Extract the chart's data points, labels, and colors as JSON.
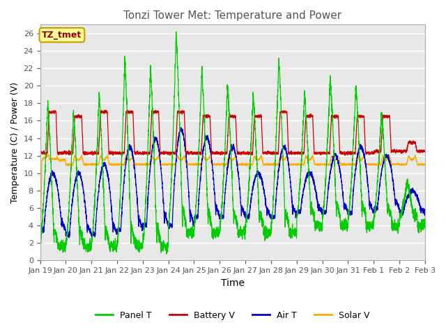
{
  "title": "Tonzi Tower Met: Temperature and Power",
  "xlabel": "Time",
  "ylabel": "Temperature (C) / Power (V)",
  "ylim": [
    0,
    27
  ],
  "yticks": [
    0,
    2,
    4,
    6,
    8,
    10,
    12,
    14,
    16,
    18,
    20,
    22,
    24,
    26
  ],
  "x_labels": [
    "Jan 19",
    "Jan 20",
    "Jan 21",
    "Jan 22",
    "Jan 23",
    "Jan 24",
    "Jan 25",
    "Jan 26",
    "Jan 27",
    "Jan 28",
    "Jan 29",
    "Jan 30",
    "Jan 31",
    "Feb 1",
    "Feb 2",
    "Feb 3"
  ],
  "tz_label": "TZ_tmet",
  "legend": [
    "Panel T",
    "Battery V",
    "Air T",
    "Solar V"
  ],
  "colors": {
    "Panel T": "#00cc00",
    "Battery V": "#cc0000",
    "Air T": "#0000cc",
    "Solar V": "#ffaa00"
  },
  "background_color": "#ffffff",
  "plot_bg_color": "#e8e8e8",
  "grid_color": "#ffffff",
  "num_days": 15,
  "panel_t_peaks": [
    18,
    17,
    19,
    23,
    22,
    26,
    22,
    20,
    19,
    23,
    19,
    21,
    20,
    17,
    9
  ],
  "panel_t_nights": [
    2,
    2,
    2,
    2,
    2,
    4,
    4,
    4,
    4,
    4,
    5,
    5,
    5,
    5,
    5
  ],
  "battery_v_day": [
    17,
    16.5,
    17,
    17,
    17,
    17,
    16.5,
    16.5,
    16.5,
    17,
    16.5,
    16.5,
    16.5,
    16.5,
    13.5
  ],
  "battery_v_night": [
    12.3,
    12.3,
    12.3,
    12.3,
    12.3,
    12.3,
    12.3,
    12.3,
    12.3,
    12.3,
    12.3,
    12.3,
    12.3,
    12.5,
    12.5
  ],
  "air_t_peaks": [
    10,
    10,
    11,
    13,
    14,
    15,
    14,
    13,
    10,
    13,
    10,
    12,
    13,
    12,
    8
  ],
  "air_t_nights": [
    3.5,
    3.0,
    3.0,
    3.5,
    4.0,
    4.0,
    5.0,
    5.0,
    5.0,
    5.0,
    5.5,
    5.5,
    5.5,
    6.0,
    5.5
  ],
  "solar_v_base": 0.0,
  "solar_v_plateau": 11.5,
  "solar_v_day_peak": 12.0
}
